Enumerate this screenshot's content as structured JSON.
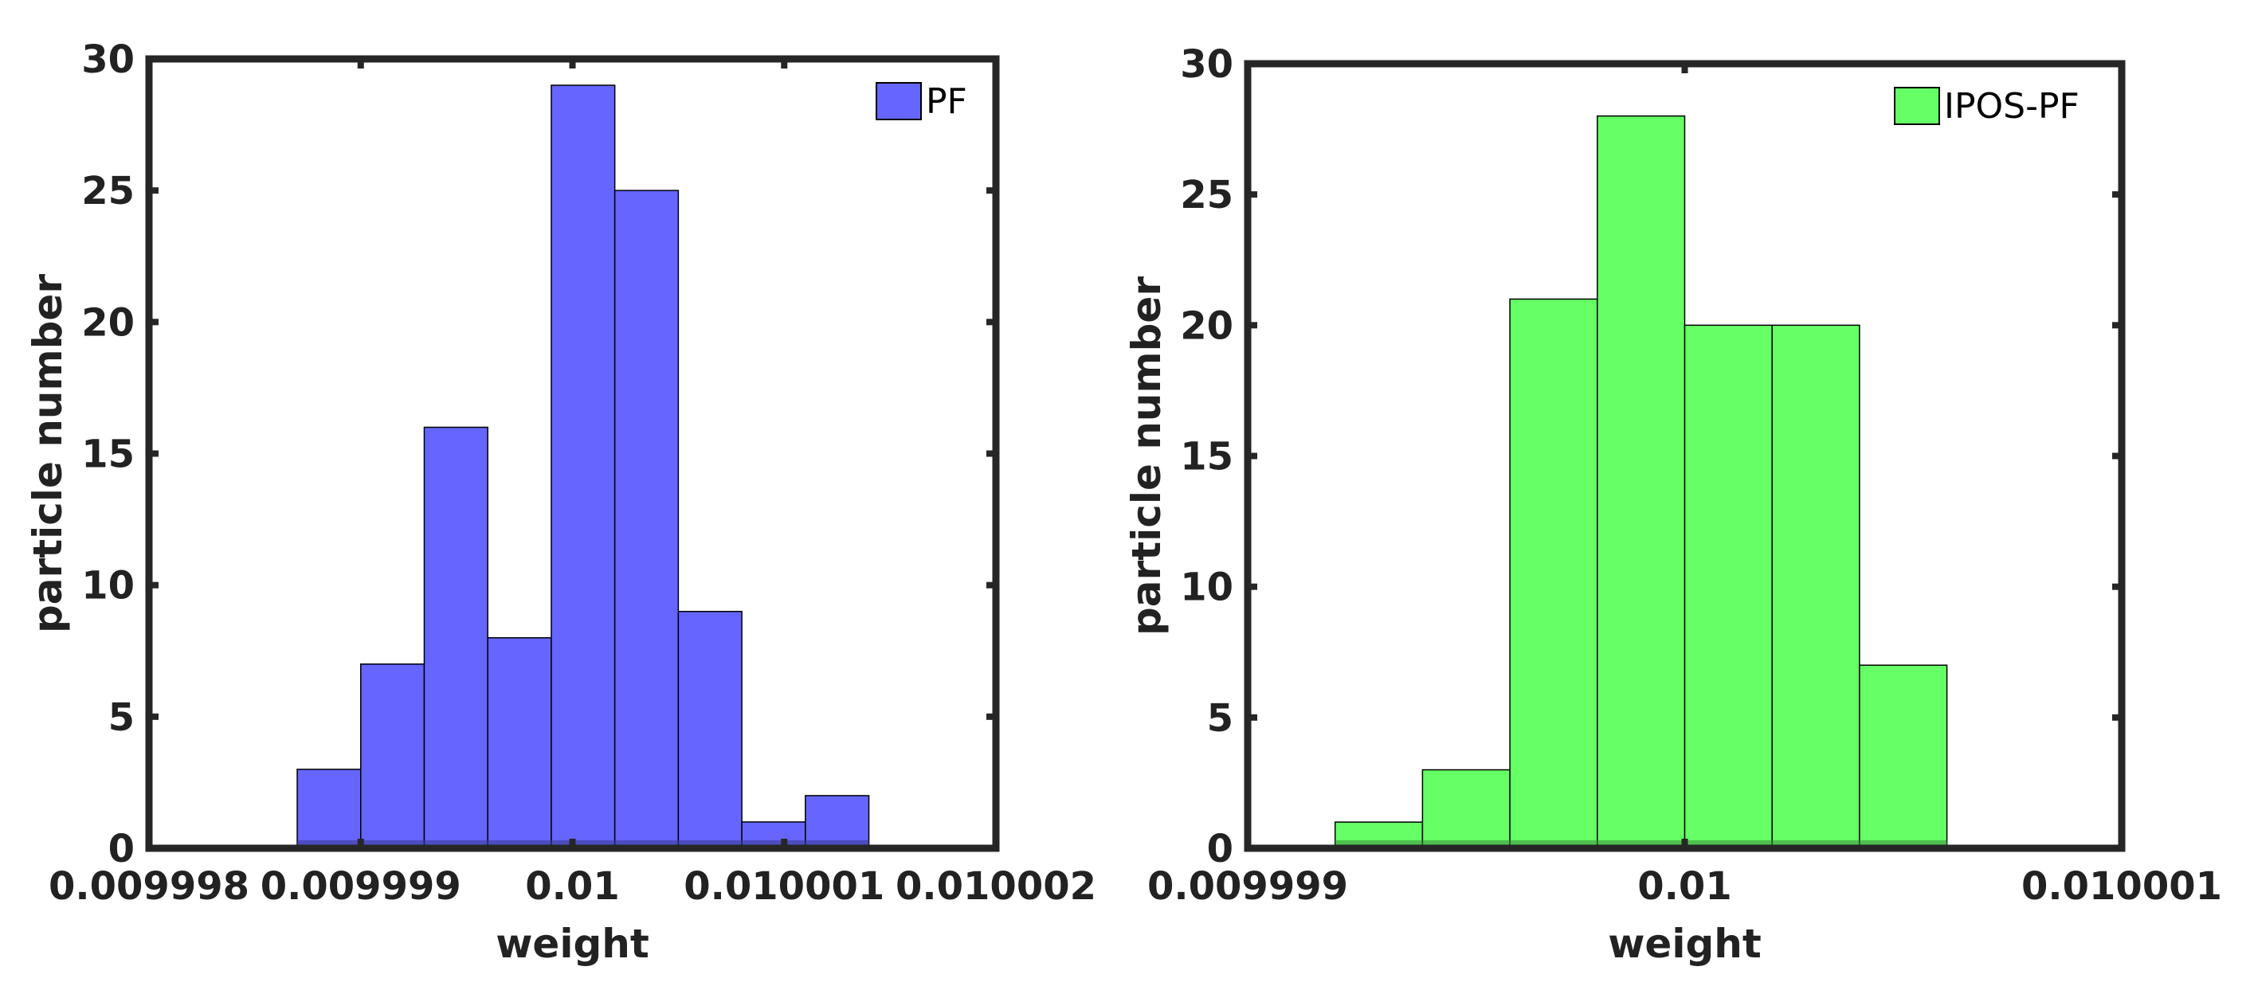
{
  "chart_data": [
    {
      "type": "bar",
      "title": "",
      "xlabel": "weight",
      "ylabel": "particle number",
      "xlim": [
        0.009998,
        0.010002
      ],
      "ylim": [
        0,
        30
      ],
      "xticks": [
        0.009998,
        0.009999,
        0.01,
        0.010001,
        0.010002
      ],
      "xtick_labels": [
        "0.009998",
        "0.009999",
        "0.01",
        "0.010001",
        "0.010002"
      ],
      "yticks": [
        0,
        5,
        10,
        15,
        20,
        25,
        30
      ],
      "bin_edges": [
        0.0099987,
        0.009999,
        0.0099993,
        0.0099996,
        0.0099999,
        0.0100002,
        0.0100005,
        0.0100008,
        0.0100011,
        0.0100014
      ],
      "values": [
        3,
        7,
        16,
        8,
        29,
        25,
        9,
        1,
        2
      ],
      "series": [
        {
          "name": "PF",
          "color": "#6666ff"
        }
      ],
      "legend": "top-right",
      "grid": false
    },
    {
      "type": "bar",
      "title": "",
      "xlabel": "weight",
      "ylabel": "particle number",
      "xlim": [
        0.009999,
        0.010001
      ],
      "ylim": [
        0,
        30
      ],
      "xticks": [
        0.009999,
        0.01,
        0.010001
      ],
      "xtick_labels": [
        "0.009999",
        "0.01",
        "0.010001"
      ],
      "yticks": [
        0,
        5,
        10,
        15,
        20,
        25,
        30
      ],
      "bin_edges": [
        0.0099992,
        0.0099994,
        0.0099996,
        0.0099998,
        0.01,
        0.0100002,
        0.0100004,
        0.0100006
      ],
      "values": [
        1,
        3,
        21,
        28,
        20,
        20,
        7
      ],
      "series": [
        {
          "name": "IPOS-PF",
          "color": "#66ff66"
        }
      ],
      "legend": "top-right",
      "grid": false
    }
  ]
}
